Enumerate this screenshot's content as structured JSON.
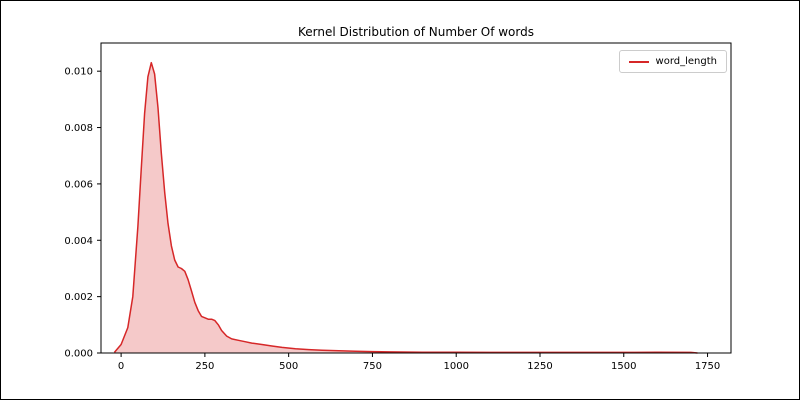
{
  "chart_data": {
    "type": "area",
    "title": "Kernel Distribution of Number Of words",
    "xlabel": "",
    "ylabel": "",
    "xlim": [
      -60,
      1820
    ],
    "ylim": [
      0,
      0.011
    ],
    "grid": false,
    "legend_position": "upper right",
    "x_tick_values": [
      0,
      250,
      500,
      750,
      1000,
      1250,
      1500,
      1750
    ],
    "x_tick_labels": [
      "0",
      "250",
      "500",
      "750",
      "1000",
      "1250",
      "1500",
      "1750"
    ],
    "y_tick_values": [
      0.0,
      0.002,
      0.004,
      0.006,
      0.008,
      0.01
    ],
    "y_tick_labels": [
      "0.000",
      "0.002",
      "0.004",
      "0.006",
      "0.008",
      "0.010"
    ],
    "axis_color": "#000000",
    "series": [
      {
        "name": "word_length",
        "color": "#d62728",
        "fill_opacity": 0.25,
        "x": [
          -20,
          0,
          20,
          35,
          50,
          60,
          70,
          80,
          90,
          100,
          110,
          120,
          130,
          140,
          150,
          160,
          170,
          180,
          190,
          200,
          210,
          220,
          230,
          240,
          250,
          260,
          270,
          280,
          290,
          300,
          315,
          330,
          350,
          370,
          390,
          420,
          450,
          480,
          520,
          560,
          600,
          650,
          700,
          750,
          800,
          900,
          1000,
          1100,
          1200,
          1300,
          1400,
          1500,
          1600,
          1700,
          1720
        ],
        "y": [
          2e-05,
          0.0003,
          0.0009,
          0.002,
          0.0045,
          0.0065,
          0.0085,
          0.0098,
          0.0103,
          0.0099,
          0.0087,
          0.0071,
          0.0057,
          0.0046,
          0.0038,
          0.0033,
          0.00305,
          0.003,
          0.0029,
          0.0026,
          0.0022,
          0.0018,
          0.0015,
          0.0013,
          0.00125,
          0.0012,
          0.0012,
          0.00115,
          0.001,
          0.0008,
          0.0006,
          0.0005,
          0.00045,
          0.0004,
          0.00035,
          0.0003,
          0.00025,
          0.0002,
          0.00015,
          0.00012,
          0.0001,
          8e-05,
          6e-05,
          5e-05,
          4e-05,
          3e-05,
          3e-05,
          2e-05,
          2e-05,
          2e-05,
          2e-05,
          2e-05,
          3e-05,
          2e-05,
          0.0
        ]
      }
    ]
  }
}
